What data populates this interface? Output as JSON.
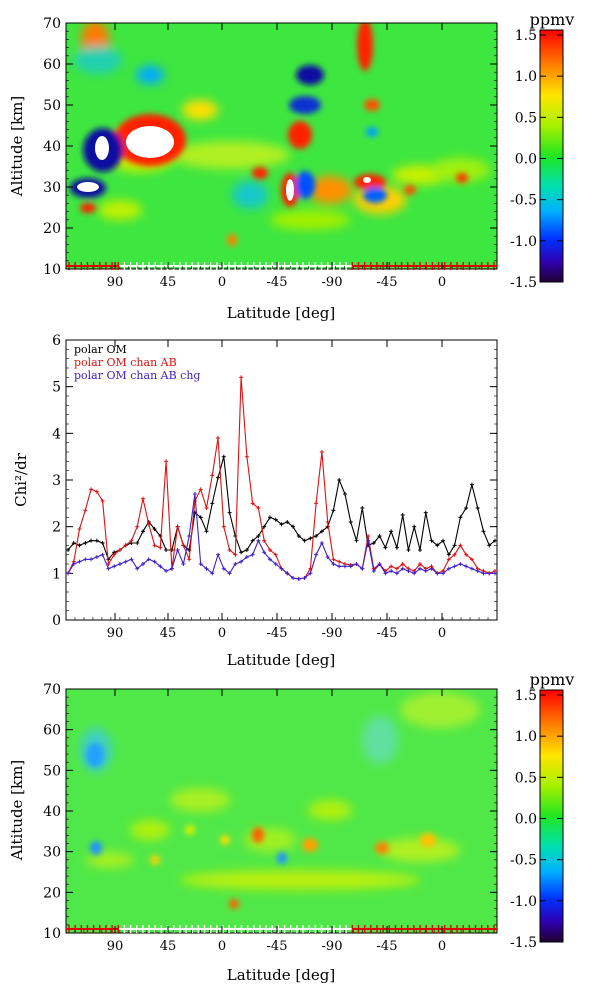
{
  "chart_data": [
    {
      "type": "heatmap",
      "title": "",
      "xlabel": "Latitude [deg]",
      "ylabel": "Altitude [km]",
      "x_ticks": [
        "90",
        "45",
        "0",
        "-45",
        "-90",
        "-45",
        "0"
      ],
      "y_ticks": [
        "10",
        "20",
        "30",
        "40",
        "50",
        "60",
        "70"
      ],
      "ylim": [
        10,
        70
      ],
      "colorbar": {
        "unit": "ppmv",
        "range": [
          -1.5,
          1.5
        ],
        "ticks": [
          "1.5",
          "1.0",
          "0.5",
          "0.0",
          "-0.5",
          "-1.0",
          "-1.5"
        ]
      },
      "track_markers": [
        "red",
        "white",
        "red"
      ]
    },
    {
      "type": "line",
      "title": "",
      "xlabel": "Latitude [deg]",
      "ylabel": "Chi²/dr",
      "x_ticks": [
        "90",
        "45",
        "0",
        "-45",
        "-90",
        "-45",
        "0"
      ],
      "y_ticks": [
        "0",
        "1",
        "2",
        "3",
        "4",
        "5",
        "6"
      ],
      "ylim": [
        0,
        6
      ],
      "grid": false,
      "legend_position": "top-left",
      "series": [
        {
          "name": "polar OM",
          "color": "#000000",
          "values": [
            1.5,
            1.65,
            1.6,
            1.65,
            1.7,
            1.7,
            1.65,
            1.3,
            1.45,
            1.5,
            1.6,
            1.65,
            1.65,
            1.9,
            2.1,
            1.95,
            1.8,
            1.5,
            1.5,
            2.0,
            1.6,
            1.5,
            2.3,
            2.2,
            1.9,
            2.5,
            3.05,
            3.5,
            2.3,
            1.8,
            1.45,
            1.5,
            1.7,
            1.8,
            2.0,
            2.2,
            2.15,
            2.05,
            2.1,
            2.0,
            1.8,
            1.7,
            1.75,
            1.8,
            1.9,
            2.0,
            2.35,
            3.0,
            2.7,
            2.1,
            1.7,
            2.4,
            1.6,
            1.65,
            1.8,
            1.55,
            1.9,
            1.55,
            2.25,
            1.5,
            2.0,
            1.5,
            2.3,
            1.7,
            1.6,
            1.7,
            1.4,
            1.6,
            2.2,
            2.4,
            2.9,
            2.4,
            1.9,
            1.6,
            1.7
          ]
        },
        {
          "name": "polar OM chan AB",
          "color": "#e01010",
          "values": [
            1.0,
            1.25,
            1.95,
            2.35,
            2.8,
            2.75,
            2.55,
            1.2,
            1.4,
            1.5,
            1.6,
            1.7,
            2.0,
            2.6,
            2.05,
            1.6,
            1.55,
            3.4,
            1.1,
            2.0,
            1.6,
            1.3,
            2.55,
            2.8,
            2.4,
            3.1,
            3.9,
            2.0,
            1.5,
            1.4,
            5.2,
            3.5,
            2.5,
            2.4,
            1.7,
            1.5,
            1.4,
            1.1,
            1.0,
            0.9,
            0.88,
            0.9,
            1.1,
            2.5,
            3.6,
            2.1,
            1.3,
            1.25,
            1.2,
            1.18,
            1.2,
            1.1,
            1.8,
            1.1,
            1.2,
            1.05,
            1.15,
            1.1,
            1.2,
            1.1,
            1.05,
            1.2,
            1.1,
            1.15,
            1.0,
            1.05,
            1.3,
            1.4,
            1.6,
            1.4,
            1.3,
            1.1,
            1.05,
            1.0,
            1.05
          ]
        },
        {
          "name": "polar OM chan AB chg",
          "color": "#4020c8",
          "values": [
            1.0,
            1.2,
            1.25,
            1.3,
            1.3,
            1.35,
            1.4,
            1.1,
            1.15,
            1.2,
            1.25,
            1.3,
            1.1,
            1.2,
            1.3,
            1.25,
            1.15,
            1.05,
            1.1,
            1.5,
            1.2,
            1.8,
            2.7,
            1.2,
            1.1,
            1.0,
            1.4,
            1.1,
            1.0,
            1.2,
            1.25,
            1.35,
            1.4,
            1.7,
            1.45,
            1.3,
            1.2,
            1.1,
            1.0,
            0.9,
            0.88,
            0.9,
            1.0,
            1.4,
            1.65,
            1.35,
            1.2,
            1.15,
            1.15,
            1.15,
            1.2,
            1.1,
            1.7,
            1.05,
            1.2,
            1.0,
            1.05,
            1.0,
            1.1,
            1.05,
            1.0,
            1.1,
            1.05,
            1.1,
            1.0,
            1.0,
            1.1,
            1.15,
            1.2,
            1.15,
            1.1,
            1.05,
            1.0,
            1.0,
            1.0
          ]
        }
      ]
    },
    {
      "type": "heatmap",
      "title": "",
      "xlabel": "Latitude [deg]",
      "ylabel": "Altitude [km]",
      "x_ticks": [
        "90",
        "45",
        "0",
        "-45",
        "-90",
        "-45",
        "0"
      ],
      "y_ticks": [
        "10",
        "20",
        "30",
        "40",
        "50",
        "60",
        "70"
      ],
      "ylim": [
        10,
        70
      ],
      "colorbar": {
        "unit": "ppmv",
        "range": [
          -1.5,
          1.5
        ],
        "ticks": [
          "1.5",
          "1.0",
          "0.5",
          "0.0",
          "-0.5",
          "-1.0",
          "-1.5"
        ]
      },
      "track_markers": [
        "red",
        "white",
        "red"
      ]
    }
  ]
}
